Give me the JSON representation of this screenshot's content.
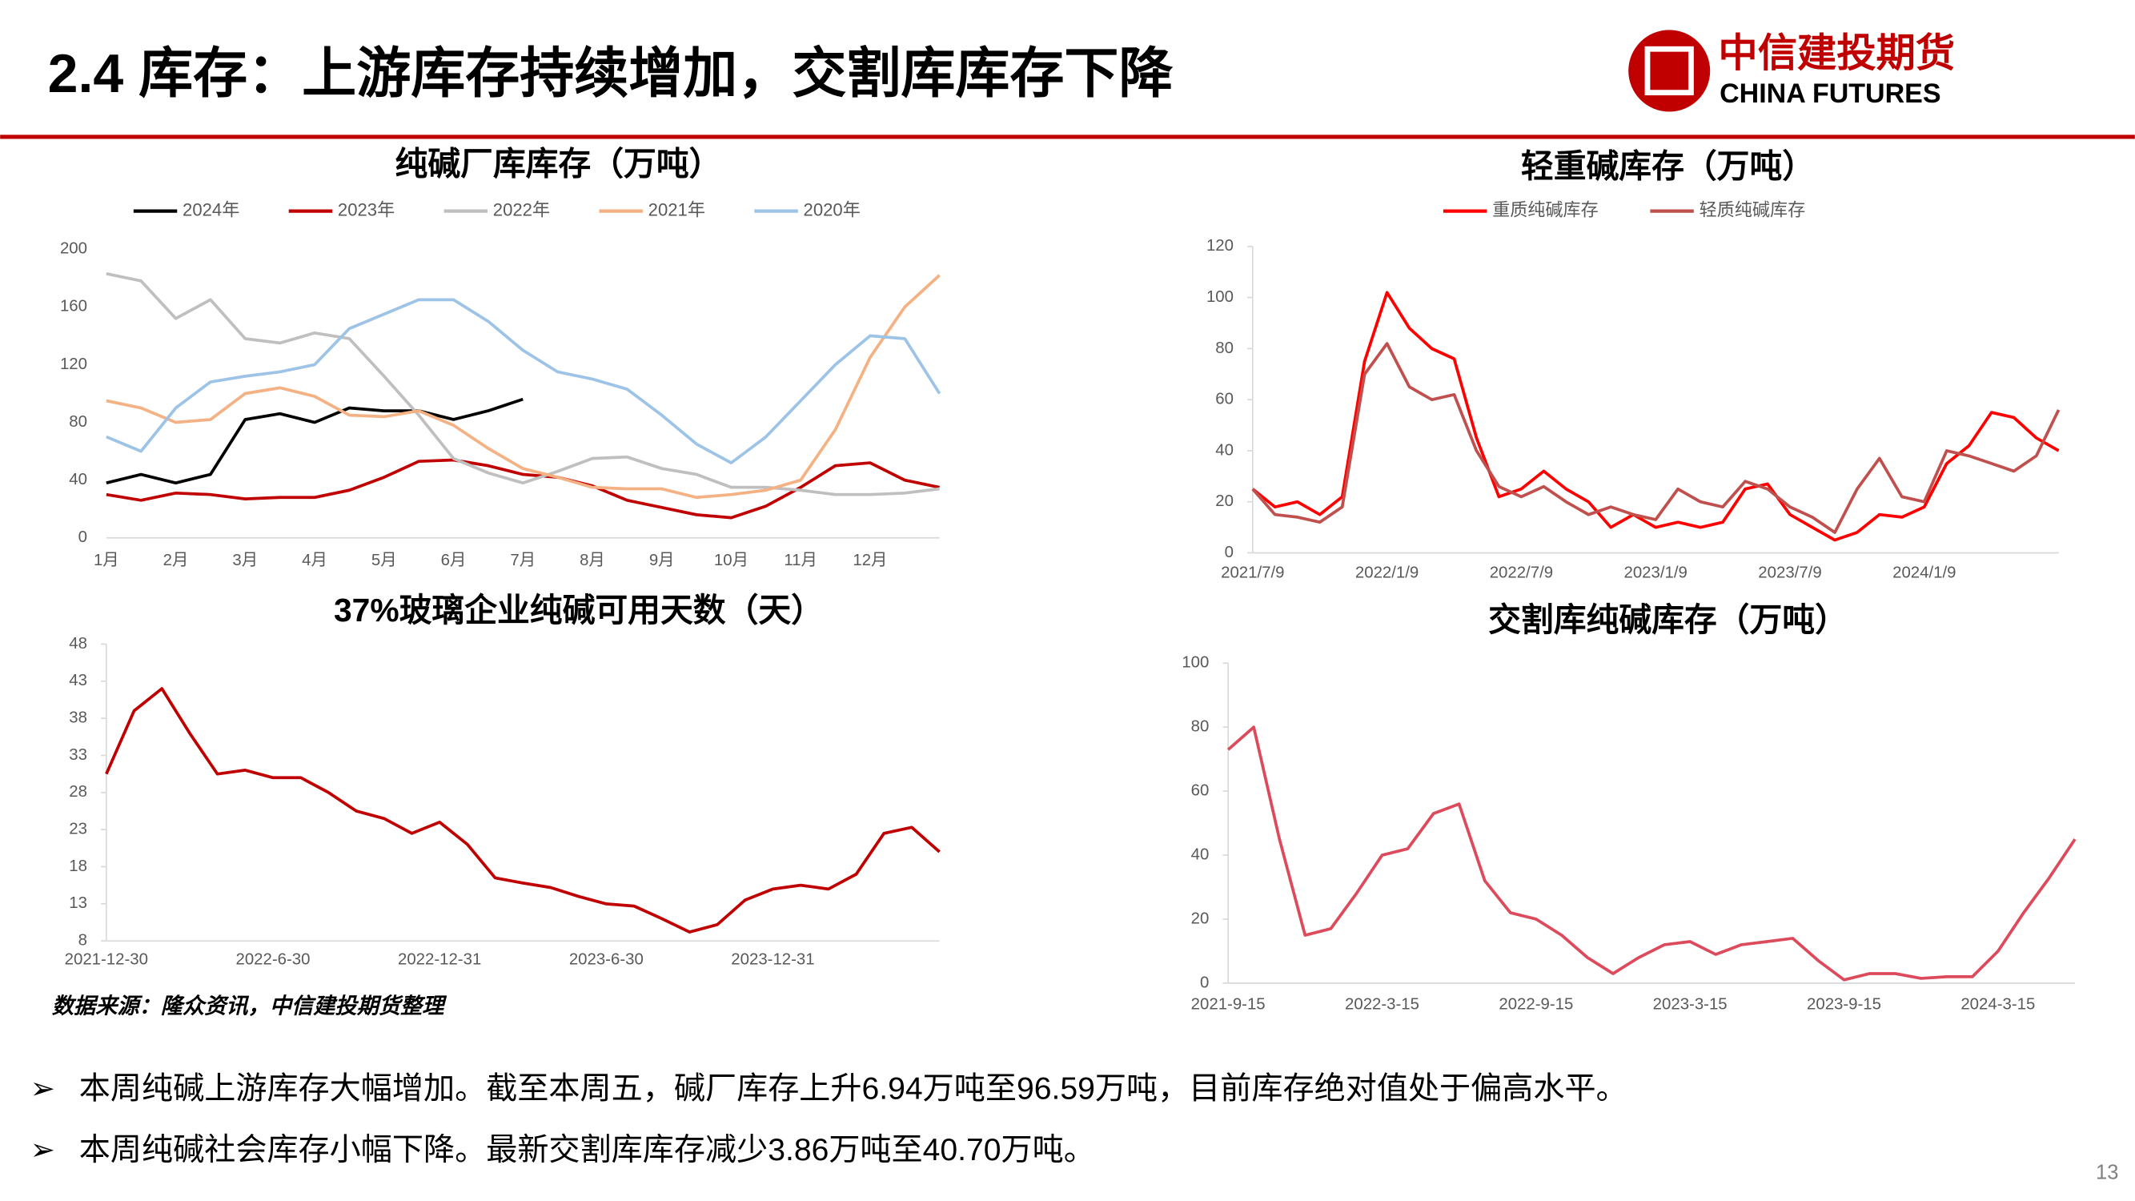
{
  "header": {
    "title": "2.4 库存：上游库存持续增加，交割库库存下降",
    "logo_cn": "中信建投期货",
    "logo_en": "CHINA FUTURES"
  },
  "chart_data": [
    {
      "type": "line",
      "title": "纯碱厂库库存（万吨）",
      "legend": "top",
      "categories": [
        "1月",
        null,
        "2月",
        null,
        "3月",
        null,
        "4月",
        null,
        "5月",
        null,
        "6月",
        null,
        "7月",
        null,
        "8月",
        null,
        "9月",
        null,
        "10月",
        null,
        "11月",
        null,
        "12月",
        null,
        null
      ],
      "series": [
        {
          "name": "2024年",
          "color": "#000000",
          "values": [
            38,
            44,
            38,
            44,
            82,
            86,
            80,
            90,
            88,
            88,
            82,
            88,
            96,
            null,
            null,
            null,
            null,
            null,
            null,
            null,
            null,
            null,
            null,
            null,
            null
          ]
        },
        {
          "name": "2023年",
          "color": "#c00000",
          "values": [
            30,
            26,
            31,
            30,
            27,
            28,
            28,
            33,
            42,
            53,
            54,
            50,
            44,
            42,
            36,
            26,
            21,
            16,
            14,
            22,
            35,
            50,
            52,
            40,
            35
          ]
        },
        {
          "name": "2022年",
          "color": "#bfbfbf",
          "values": [
            183,
            178,
            152,
            165,
            138,
            135,
            142,
            138,
            112,
            85,
            55,
            45,
            38,
            46,
            55,
            56,
            48,
            44,
            35,
            35,
            33,
            30,
            30,
            31,
            34
          ]
        },
        {
          "name": "2021年",
          "color": "#f4b183",
          "values": [
            95,
            90,
            80,
            82,
            100,
            104,
            98,
            85,
            84,
            88,
            78,
            62,
            48,
            42,
            35,
            34,
            34,
            28,
            30,
            33,
            40,
            75,
            125,
            160,
            182
          ]
        },
        {
          "name": "2020年",
          "color": "#9dc3e6",
          "values": [
            70,
            60,
            90,
            108,
            112,
            115,
            120,
            145,
            155,
            165,
            165,
            150,
            130,
            115,
            110,
            103,
            85,
            65,
            52,
            70,
            95,
            120,
            140,
            138,
            100
          ]
        }
      ],
      "ylim": [
        0,
        200
      ],
      "yticks": [
        0,
        40,
        80,
        120,
        160,
        200
      ]
    },
    {
      "type": "line",
      "title": "轻重碱库存（万吨）",
      "legend": "top",
      "categories": [
        "2021/7/9",
        null,
        null,
        null,
        null,
        null,
        "2022/1/9",
        null,
        null,
        null,
        null,
        null,
        "2022/7/9",
        null,
        null,
        null,
        null,
        null,
        "2023/1/9",
        null,
        null,
        null,
        null,
        null,
        "2023/7/9",
        null,
        null,
        null,
        null,
        null,
        "2024/1/9",
        null,
        null,
        null,
        null,
        null,
        null
      ],
      "series": [
        {
          "name": "重质纯碱库存",
          "color": "#ff0000",
          "values": [
            25,
            18,
            20,
            15,
            22,
            75,
            102,
            88,
            80,
            76,
            45,
            22,
            25,
            32,
            25,
            20,
            10,
            15,
            10,
            12,
            10,
            12,
            25,
            27,
            15,
            10,
            5,
            8,
            15,
            14,
            18,
            35,
            42,
            55,
            53,
            45,
            40
          ]
        },
        {
          "name": "轻质纯碱库存",
          "color": "#c0504d",
          "values": [
            25,
            15,
            14,
            12,
            18,
            70,
            82,
            65,
            60,
            62,
            40,
            26,
            22,
            26,
            20,
            15,
            18,
            15,
            13,
            25,
            20,
            18,
            28,
            25,
            18,
            14,
            8,
            25,
            37,
            22,
            20,
            40,
            38,
            35,
            32,
            38,
            56
          ]
        }
      ],
      "ylim": [
        0,
        120
      ],
      "yticks": [
        0,
        20,
        40,
        60,
        80,
        100,
        120
      ]
    },
    {
      "type": "line",
      "title": "37%玻璃企业纯碱可用天数（天）",
      "categories": [
        "2021-12-30",
        null,
        null,
        null,
        null,
        null,
        "2022-6-30",
        null,
        null,
        null,
        null,
        null,
        "2022-12-31",
        null,
        null,
        null,
        null,
        null,
        "2023-6-30",
        null,
        null,
        null,
        null,
        null,
        "2023-12-31",
        null,
        null,
        null,
        null,
        null,
        null
      ],
      "series": [
        {
          "color": "#c00000",
          "values": [
            30.5,
            39,
            42,
            36,
            30.5,
            31,
            30,
            30,
            28,
            25.5,
            24.5,
            22.5,
            24,
            21,
            16.5,
            15.8,
            15.2,
            14,
            13,
            12.7,
            11,
            9.2,
            10.2,
            13.5,
            15,
            15.5,
            15,
            17,
            22.5,
            23.3,
            20
          ]
        }
      ],
      "ylim": [
        8,
        48
      ],
      "yticks": [
        8,
        13,
        18,
        23,
        28,
        33,
        38,
        43,
        48
      ]
    },
    {
      "type": "line",
      "title": "交割库纯碱库存（万吨）",
      "categories": [
        "2021-9-15",
        null,
        null,
        null,
        null,
        null,
        "2022-3-15",
        null,
        null,
        null,
        null,
        null,
        "2022-9-15",
        null,
        null,
        null,
        null,
        null,
        "2023-3-15",
        null,
        null,
        null,
        null,
        null,
        "2023-9-15",
        null,
        null,
        null,
        null,
        null,
        "2024-3-15",
        null,
        null,
        null
      ],
      "series": [
        {
          "color": "#dc4a5c",
          "values": [
            73,
            80,
            45,
            15,
            17,
            28,
            40,
            42,
            53,
            56,
            32,
            22,
            20,
            15,
            8,
            3,
            8,
            12,
            13,
            9,
            12,
            13,
            14,
            7,
            1,
            3,
            3,
            1.5,
            2,
            2,
            10,
            22,
            33,
            45
          ]
        }
      ],
      "ylim": [
        0,
        100
      ],
      "yticks": [
        0,
        20,
        40,
        60,
        80,
        100
      ]
    }
  ],
  "source": "数据来源：隆众资讯，中信建投期货整理",
  "bullets": [
    "本周纯碱上游库存大幅增加。截至本周五，碱厂库存上升6.94万吨至96.59万吨，目前库存绝对值处于偏高水平。",
    "本周纯碱社会库存小幅下降。最新交割库库存减少3.86万吨至40.70万吨。"
  ],
  "page_number": "13"
}
